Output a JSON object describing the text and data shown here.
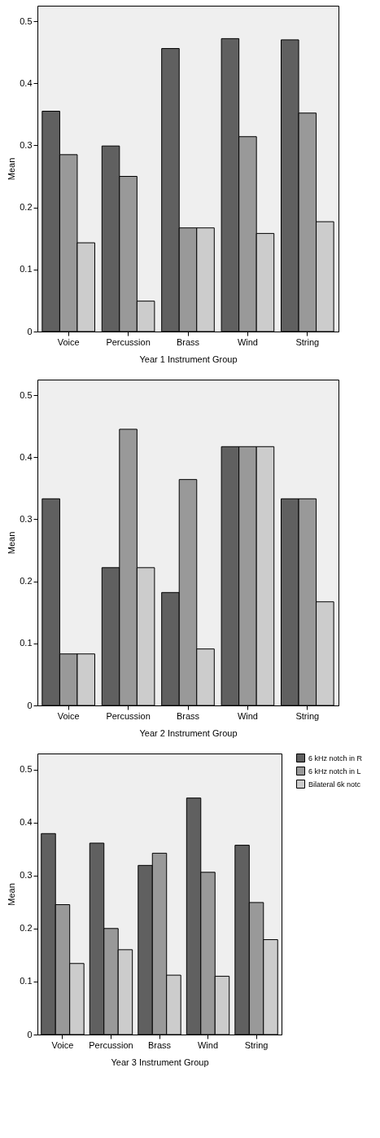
{
  "chart_data": [
    {
      "type": "bar",
      "categories": [
        "Voice",
        "Percussion",
        "Brass",
        "Wind",
        "String"
      ],
      "xlabel": "Year 1 Instrument Group",
      "ylabel": "Mean",
      "ylim": [
        0,
        0.525
      ],
      "yticks": [
        0,
        0.1,
        0.2,
        0.3,
        0.4,
        0.5
      ],
      "grid": false,
      "legend": false,
      "series": [
        {
          "color": "#606060",
          "values": [
            0.355,
            0.299,
            0.456,
            0.472,
            0.47
          ]
        },
        {
          "color": "#999999",
          "values": [
            0.285,
            0.25,
            0.167,
            0.314,
            0.352
          ]
        },
        {
          "color": "#cccccc",
          "values": [
            0.143,
            0.049,
            0.167,
            0.158,
            0.177
          ]
        }
      ]
    },
    {
      "type": "bar",
      "categories": [
        "Voice",
        "Percussion",
        "Brass",
        "Wind",
        "String"
      ],
      "xlabel": "Year 2 Instrument Group",
      "ylabel": "Mean",
      "ylim": [
        0,
        0.525
      ],
      "yticks": [
        0,
        0.1,
        0.2,
        0.3,
        0.4,
        0.5
      ],
      "grid": false,
      "legend": false,
      "series": [
        {
          "color": "#606060",
          "values": [
            0.333,
            0.222,
            0.182,
            0.417,
            0.333
          ]
        },
        {
          "color": "#999999",
          "values": [
            0.083,
            0.445,
            0.364,
            0.417,
            0.333
          ]
        },
        {
          "color": "#cccccc",
          "values": [
            0.083,
            0.222,
            0.091,
            0.417,
            0.167
          ]
        }
      ]
    },
    {
      "type": "bar",
      "categories": [
        "Voice",
        "Percussion",
        "Brass",
        "Wind",
        "String"
      ],
      "xlabel": "Year 3 Instrument Group",
      "ylabel": "Mean",
      "ylim": [
        0,
        0.53
      ],
      "yticks": [
        0,
        0.1,
        0.2,
        0.3,
        0.4,
        0.5
      ],
      "grid": false,
      "legend": "top right",
      "series": [
        {
          "name": "6 kHz notch in R",
          "color": "#606060",
          "values": [
            0.379,
            0.361,
            0.319,
            0.446,
            0.357
          ]
        },
        {
          "name": "6 kHz notch in L",
          "color": "#999999",
          "values": [
            0.245,
            0.2,
            0.342,
            0.306,
            0.249
          ]
        },
        {
          "name": "Bilateral 6k notc",
          "color": "#cccccc",
          "values": [
            0.134,
            0.16,
            0.112,
            0.11,
            0.179
          ]
        }
      ]
    }
  ]
}
